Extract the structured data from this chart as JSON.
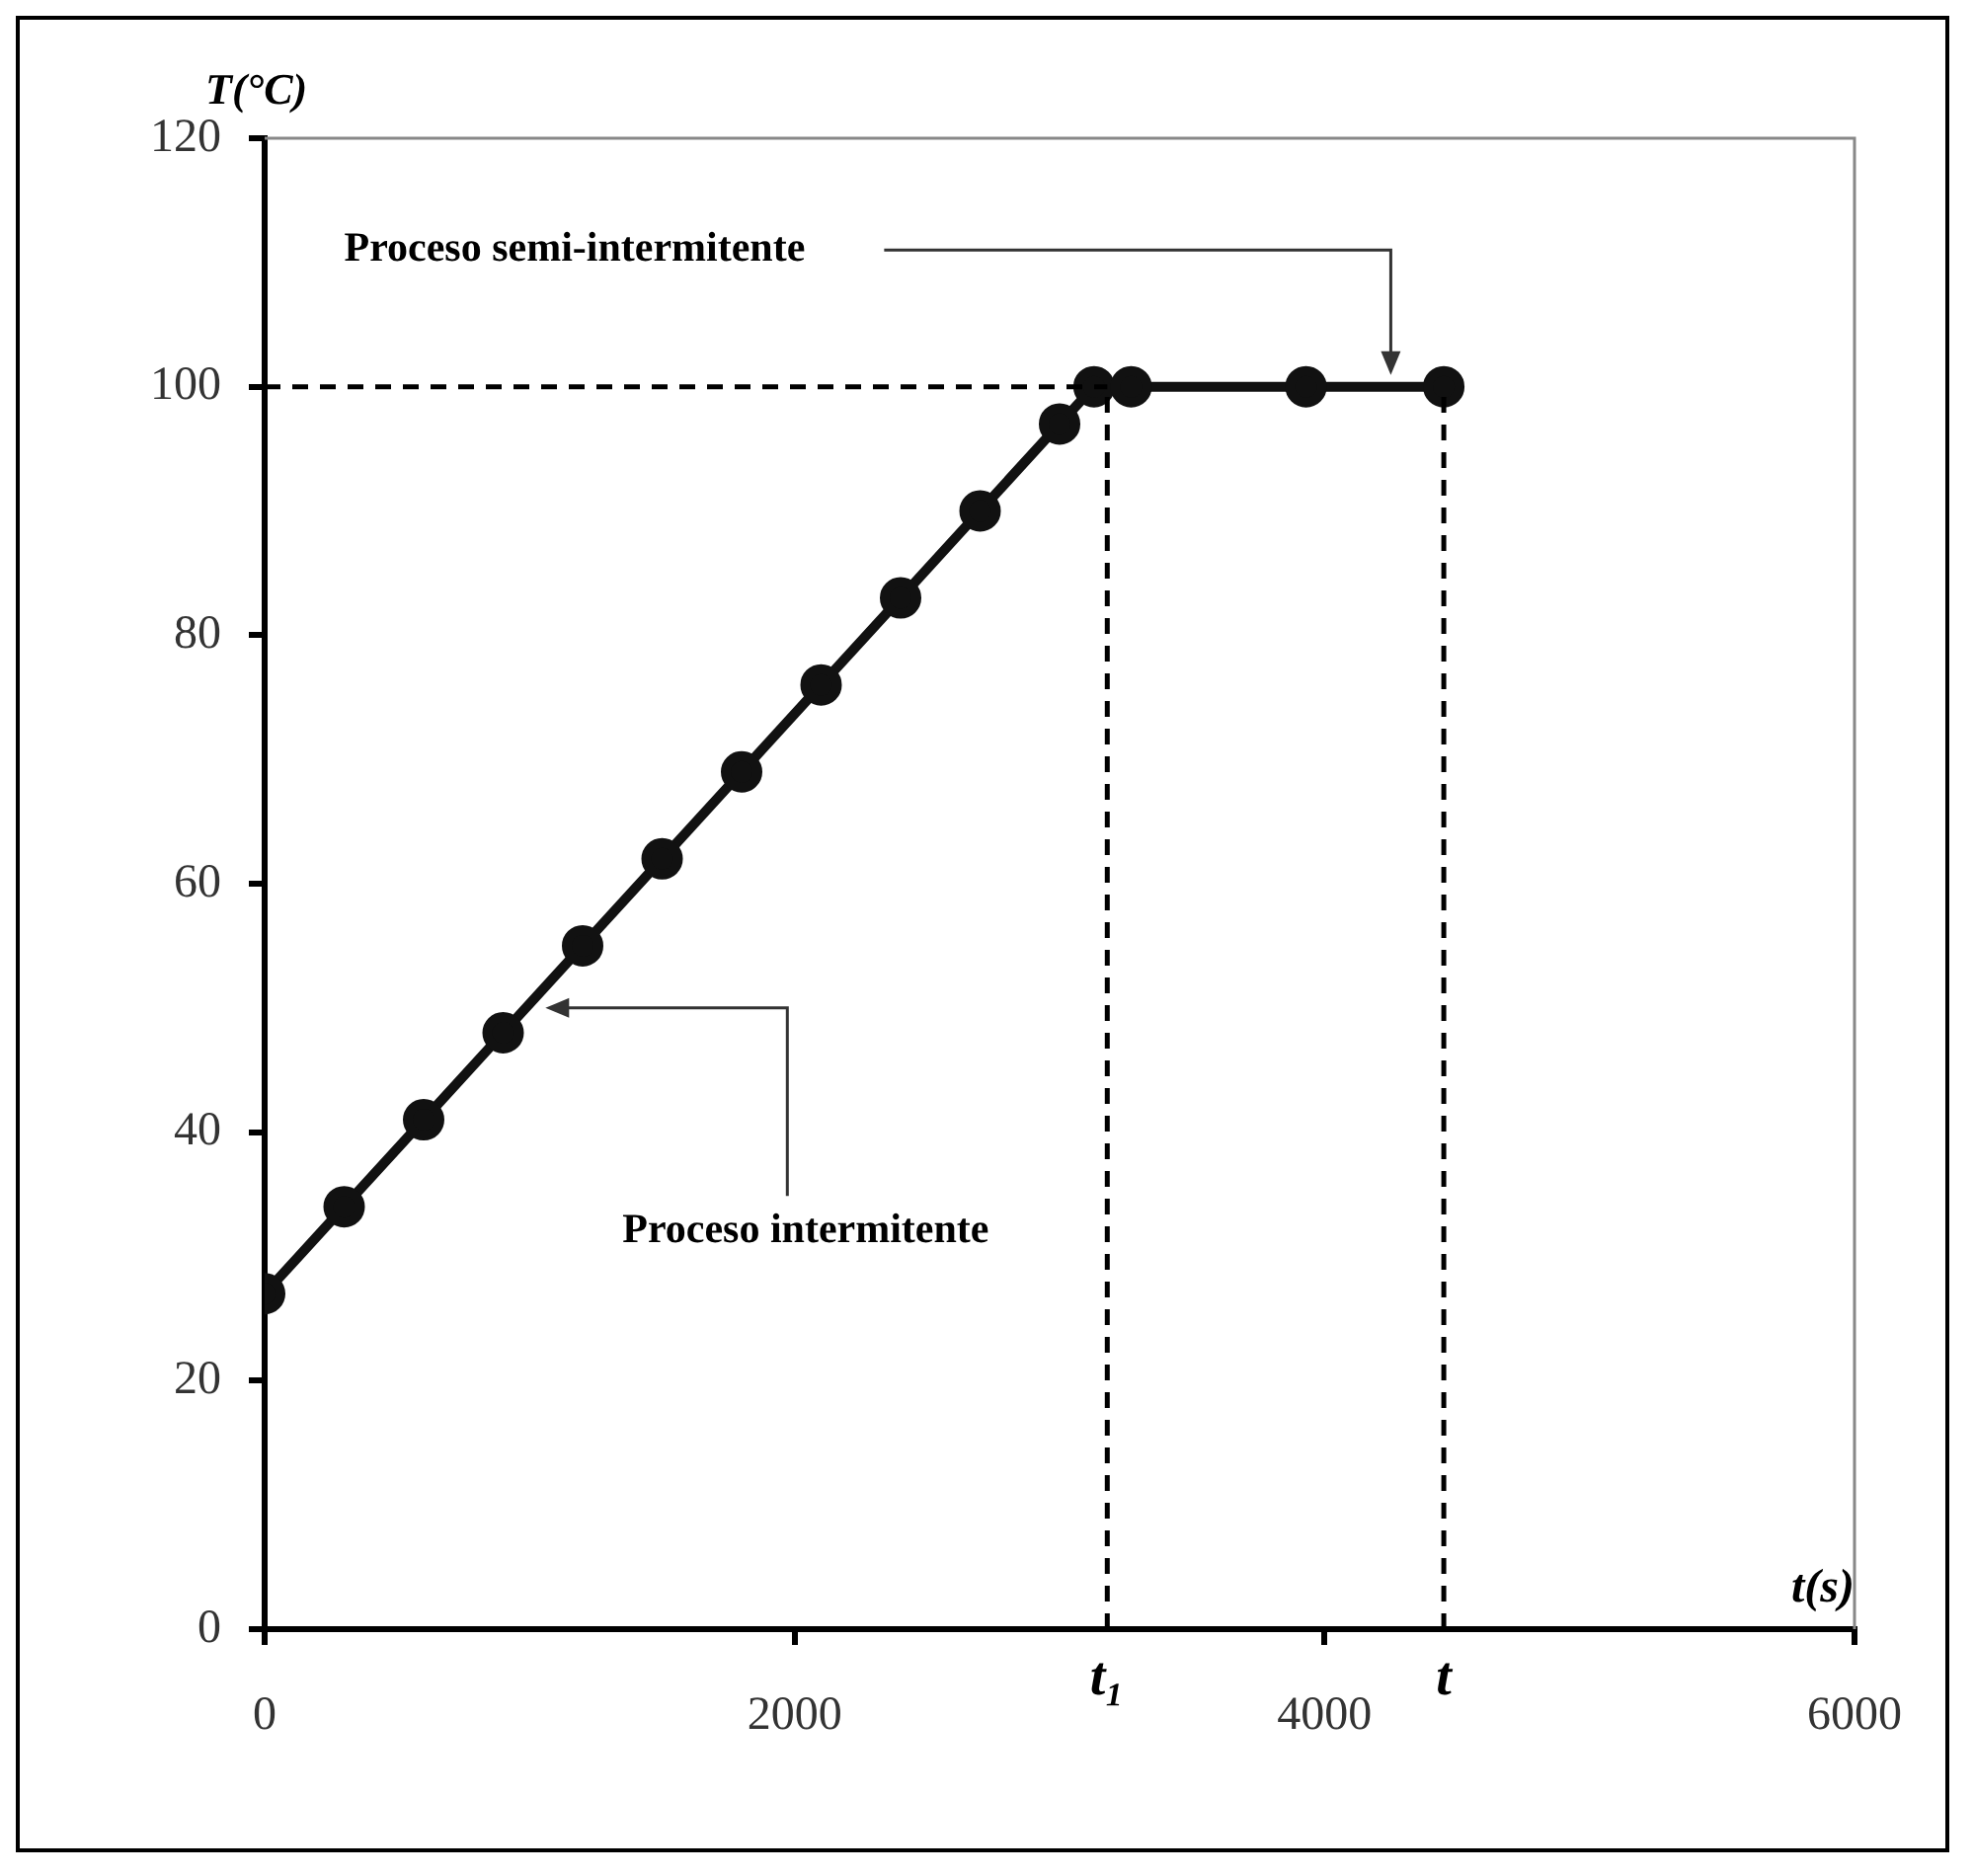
{
  "chart_data": {
    "type": "line",
    "xlabel": "t(s)",
    "ylabel": "T(°C)",
    "series": [
      {
        "color": "#111111",
        "x": [
          0,
          300,
          600,
          900,
          1200,
          1500,
          1800,
          2100,
          2400,
          2700,
          3000,
          3130,
          3270,
          3930,
          4450
        ],
        "values": [
          27,
          34,
          41,
          48,
          55,
          62,
          69,
          76,
          83,
          90,
          97,
          100,
          100,
          100,
          100
        ]
      }
    ],
    "xlim": [
      0,
      6000
    ],
    "xticks": [
      0,
      2000,
      4000,
      6000
    ],
    "ylim": [
      0,
      120
    ],
    "yticks": [
      0,
      20,
      40,
      60,
      80,
      100,
      120
    ],
    "ref_lines": [
      {
        "axis": "y",
        "value": 100,
        "color": "#000000",
        "line_style": "dashed"
      },
      {
        "axis": "x",
        "value": 3180,
        "label": "t₁",
        "color": "#000000",
        "line_style": "dashed"
      },
      {
        "axis": "x",
        "value": 4450,
        "label": "t",
        "color": "#000000",
        "line_style": "dashed"
      }
    ],
    "annotations": [
      "Proceso semi-intermitente",
      "Proceso intermitente"
    ],
    "marker": "circle",
    "line_style": "solid",
    "grid": false,
    "legend": false
  }
}
